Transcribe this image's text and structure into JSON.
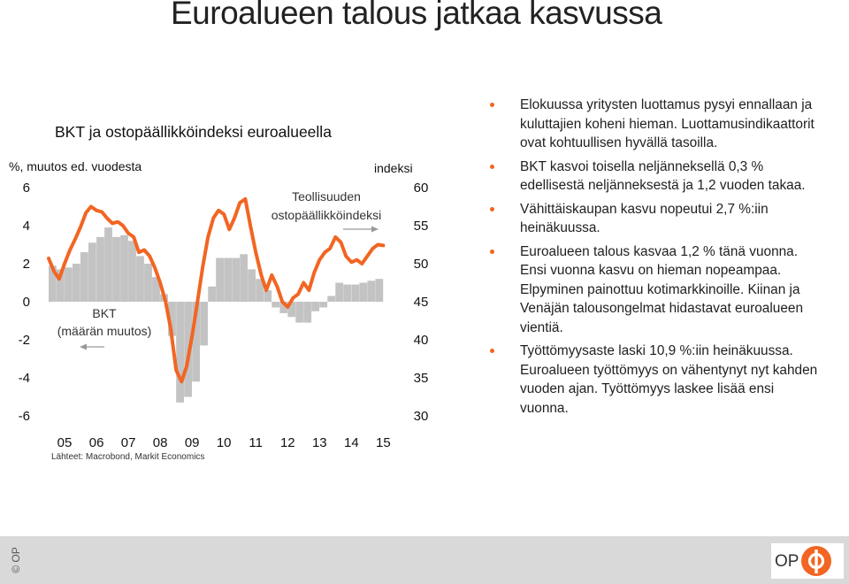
{
  "slide": {
    "title": "Euroalueen talous jatkaa kasvussa"
  },
  "chart_data": {
    "type": "bar+line",
    "title": "BKT ja ostopäällikköindeksi euroalueella",
    "left_axis_label": "%, muutos ed. vuodesta",
    "right_axis_label": "indeksi",
    "ylim_left": [
      -6,
      6
    ],
    "ylim_right": [
      30,
      60
    ],
    "left_ticks": [
      "6",
      "4",
      "2",
      "0",
      "-2",
      "-4",
      "-6"
    ],
    "right_ticks": [
      "60",
      "55",
      "50",
      "45",
      "40",
      "35",
      "30"
    ],
    "x_labels": [
      "05",
      "06",
      "07",
      "08",
      "09",
      "10",
      "11",
      "12",
      "13",
      "14",
      "15"
    ],
    "x_range": [
      2005.0,
      2015.6
    ],
    "source": "Lähteet: Macrobond, Markit Economics",
    "bars": {
      "label_line1": "BKT",
      "label_line2": "(määrän muutos)",
      "color": "#c3c3c3",
      "x": [
        2005.0,
        2005.25,
        2005.5,
        2005.75,
        2006.0,
        2006.25,
        2006.5,
        2006.75,
        2007.0,
        2007.25,
        2007.5,
        2007.75,
        2008.0,
        2008.25,
        2008.5,
        2008.75,
        2009.0,
        2009.25,
        2009.5,
        2009.75,
        2010.0,
        2010.25,
        2010.5,
        2010.75,
        2011.0,
        2011.25,
        2011.5,
        2011.75,
        2012.0,
        2012.25,
        2012.5,
        2012.75,
        2013.0,
        2013.25,
        2013.5,
        2013.75,
        2014.0,
        2014.25,
        2014.5,
        2014.75,
        2015.0,
        2015.25
      ],
      "values": [
        1.9,
        1.7,
        1.8,
        2.0,
        2.6,
        3.1,
        3.4,
        3.9,
        3.4,
        3.5,
        3.2,
        2.4,
        2.0,
        1.3,
        0.4,
        -1.8,
        -5.3,
        -5.0,
        -4.2,
        -2.3,
        0.8,
        2.3,
        2.3,
        2.3,
        2.5,
        1.7,
        1.2,
        0.6,
        -0.3,
        -0.6,
        -0.8,
        -1.1,
        -1.1,
        -0.5,
        -0.3,
        0.3,
        1.0,
        0.9,
        0.9,
        1.0,
        1.1,
        1.2
      ]
    },
    "series": [
      {
        "name": "Teollisuuden ostopäällikköindeksi",
        "label_line1": "Teollisuuden",
        "label_line2": "ostopäällikköindeksi",
        "color": "#f26522",
        "x": [
          2005.0,
          2005.17,
          2005.33,
          2005.5,
          2005.67,
          2005.83,
          2006.0,
          2006.17,
          2006.33,
          2006.5,
          2006.67,
          2006.83,
          2007.0,
          2007.17,
          2007.33,
          2007.5,
          2007.67,
          2007.83,
          2008.0,
          2008.17,
          2008.33,
          2008.5,
          2008.67,
          2008.83,
          2009.0,
          2009.17,
          2009.33,
          2009.5,
          2009.67,
          2009.83,
          2010.0,
          2010.17,
          2010.33,
          2010.5,
          2010.67,
          2010.83,
          2011.0,
          2011.17,
          2011.33,
          2011.5,
          2011.67,
          2011.83,
          2012.0,
          2012.17,
          2012.33,
          2012.5,
          2012.67,
          2012.83,
          2013.0,
          2013.17,
          2013.33,
          2013.5,
          2013.67,
          2013.83,
          2014.0,
          2014.17,
          2014.33,
          2014.5,
          2014.67,
          2014.83,
          2015.0,
          2015.17,
          2015.33,
          2015.5
        ],
        "values": [
          50.7,
          49.0,
          48.0,
          50.0,
          51.8,
          53.2,
          54.8,
          56.7,
          57.5,
          57.0,
          56.8,
          56.0,
          55.3,
          55.5,
          55.0,
          54.0,
          53.5,
          51.5,
          51.8,
          51.0,
          49.5,
          47.5,
          45.0,
          41.5,
          36.0,
          34.5,
          36.5,
          40.5,
          45.0,
          49.5,
          53.5,
          56.0,
          57.0,
          56.5,
          54.5,
          56.0,
          58.0,
          58.5,
          55.0,
          51.5,
          48.5,
          46.5,
          48.5,
          47.0,
          45.0,
          44.3,
          45.5,
          46.0,
          47.5,
          46.5,
          48.8,
          50.5,
          51.5,
          52.0,
          53.5,
          52.8,
          51.0,
          50.2,
          50.5,
          50.0,
          51.0,
          52.0,
          52.5,
          52.4
        ]
      }
    ],
    "grid": false,
    "legend": "inline labels"
  },
  "bullets": [
    "Elokuussa yritysten luottamus pysyi ennallaan ja kuluttajien koheni hieman. Luottamusindikaattorit ovat kohtuullisen hyvällä tasoilla.",
    "BKT kasvoi toisella neljänneksellä 0,3 % edellisestä neljänneksestä ja 1,2 vuoden takaa.",
    "Vähittäiskaupan kasvu nopeutui 2,7 %:iin heinäkuussa.",
    "Euroalueen talous kasvaa 1,2 % tänä vuonna. Ensi vuonna kasvu on hieman nopeampaa. Elpyminen painottuu kotimarkkinoille. Kiinan ja Venäjän talousongelmat hidastavat euroalueen vientiä.",
    "Työttömyysaste laski 10,9 %:iin heinäkuussa. Euroalueen työttömyys on vähentynyt nyt kahden vuoden ajan. Työttömyys laskee lisää ensi vuonna."
  ],
  "footer": {
    "copyright": "© OP",
    "logo_text": "OP",
    "logo_color": "#f26522"
  }
}
